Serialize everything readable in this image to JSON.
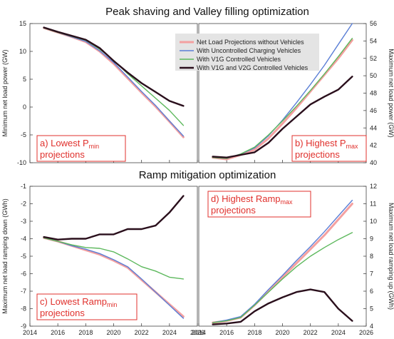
{
  "figure": {
    "title_top": "Peak shaving and Valley filling optimization",
    "title_mid": "Ramp mitigation optimization"
  },
  "legend": [
    {
      "label": "Net Load Projections without Vehicles",
      "color": "#f4a0a0"
    },
    {
      "label": "With Uncontrolled Charging Vehicles",
      "color": "#5b7fd6"
    },
    {
      "label": "With V1G Controlled Vehicles",
      "color": "#5cb85c"
    },
    {
      "label": "With V1G and V2G Controlled Vehicles",
      "color": "#2a0f1c"
    }
  ],
  "chart_data": [
    {
      "id": "a",
      "type": "line",
      "ylabel": "Minimum net load power (GW)",
      "y_side": "left",
      "xlim": [
        2014,
        2026
      ],
      "ylim": [
        -10,
        15
      ],
      "xticks": [
        2014,
        2016,
        2018,
        2020,
        2022,
        2024,
        2026
      ],
      "yticks": [
        -10,
        -5,
        0,
        5,
        10,
        15
      ],
      "show_xtick_labels": false,
      "annotation": {
        "main": "a) Lowest P",
        "sub": "min",
        "line2": "projections"
      },
      "x": [
        2015,
        2016,
        2017,
        2018,
        2019,
        2020,
        2021,
        2022,
        2023,
        2024,
        2025
      ],
      "series": [
        {
          "name": "Net Load Projections without Vehicles",
          "values": [
            14.2,
            13.4,
            12.6,
            11.7,
            10.0,
            7.8,
            5.2,
            2.6,
            0.1,
            -2.6,
            -5.4
          ]
        },
        {
          "name": "With Uncontrolled Charging Vehicles",
          "values": [
            14.2,
            13.4,
            12.6,
            11.8,
            10.1,
            8.0,
            5.4,
            2.8,
            0.3,
            -2.5,
            -5.2
          ]
        },
        {
          "name": "With V1G Controlled Vehicles",
          "values": [
            14.2,
            13.4,
            12.7,
            12.0,
            10.4,
            8.4,
            6.0,
            3.8,
            1.6,
            -0.6,
            -3.3
          ]
        },
        {
          "name": "With V1G and V2G Controlled Vehicles",
          "values": [
            14.3,
            13.5,
            12.8,
            12.1,
            10.6,
            8.3,
            6.2,
            4.3,
            2.7,
            1.1,
            0.2
          ]
        }
      ]
    },
    {
      "id": "b",
      "type": "line",
      "ylabel": "Maximum net load power (GW)",
      "y_side": "right",
      "xlim": [
        2014,
        2026
      ],
      "ylim": [
        40,
        56
      ],
      "xticks": [
        2014,
        2016,
        2018,
        2020,
        2022,
        2024,
        2026
      ],
      "yticks": [
        40,
        42,
        44,
        46,
        48,
        50,
        52,
        54,
        56
      ],
      "show_xtick_labels": false,
      "annotation": {
        "main": "b) Highest P",
        "sub": "max",
        "line2": "projections"
      },
      "x": [
        2015,
        2016,
        2017,
        2018,
        2019,
        2020,
        2021,
        2022,
        2023,
        2024,
        2025
      ],
      "series": [
        {
          "name": "Net Load Projections without Vehicles",
          "values": [
            40.6,
            40.4,
            40.9,
            41.5,
            42.8,
            44.5,
            46.3,
            48.2,
            50.1,
            52.0,
            54.1
          ]
        },
        {
          "name": "With Uncontrolled Charging Vehicles",
          "values": [
            40.6,
            40.5,
            41.0,
            41.7,
            43.1,
            44.9,
            46.9,
            49.0,
            51.2,
            53.6,
            56.0
          ]
        },
        {
          "name": "With V1G Controlled Vehicles",
          "values": [
            40.6,
            40.5,
            41.0,
            41.8,
            43.2,
            44.8,
            46.5,
            48.3,
            50.2,
            52.2,
            54.3
          ]
        },
        {
          "name": "With V1G and V2G Controlled Vehicles",
          "values": [
            40.7,
            40.6,
            40.9,
            41.2,
            42.3,
            43.9,
            45.3,
            46.7,
            47.6,
            48.4,
            49.9
          ]
        }
      ]
    },
    {
      "id": "c",
      "type": "line",
      "ylabel": "Maximum net load ramping down (GWh)",
      "y_side": "left",
      "xlim": [
        2014,
        2026
      ],
      "ylim": [
        -9,
        -1
      ],
      "xticks": [
        2014,
        2016,
        2018,
        2020,
        2022,
        2024,
        2026
      ],
      "yticks": [
        -9,
        -8,
        -7,
        -6,
        -5,
        -4,
        -3,
        -2,
        -1
      ],
      "show_xtick_labels": true,
      "annotation": {
        "main": "c) Lowest Ramp",
        "sub": "min",
        "line2": "projections"
      },
      "x": [
        2015,
        2016,
        2017,
        2018,
        2019,
        2020,
        2021,
        2022,
        2023,
        2024,
        2025
      ],
      "series": [
        {
          "name": "Net Load Projections without Vehicles",
          "values": [
            -3.95,
            -4.15,
            -4.4,
            -4.65,
            -4.9,
            -5.25,
            -5.65,
            -6.35,
            -7.05,
            -7.75,
            -8.45
          ]
        },
        {
          "name": "With Uncontrolled Charging Vehicles",
          "values": [
            -3.95,
            -4.15,
            -4.4,
            -4.6,
            -4.85,
            -5.2,
            -5.6,
            -6.3,
            -7.05,
            -7.8,
            -8.55
          ]
        },
        {
          "name": "With V1G Controlled Vehicles",
          "values": [
            -3.95,
            -4.15,
            -4.35,
            -4.5,
            -4.55,
            -4.75,
            -5.15,
            -5.6,
            -5.85,
            -6.2,
            -6.3
          ]
        },
        {
          "name": "With V1G and V2G Controlled Vehicles",
          "values": [
            -3.9,
            -4.05,
            -4.0,
            -4.0,
            -3.75,
            -3.75,
            -3.45,
            -3.45,
            -3.25,
            -2.5,
            -1.55
          ]
        }
      ]
    },
    {
      "id": "d",
      "type": "line",
      "ylabel": "Maximum net load ramping up (GWh)",
      "y_side": "right",
      "xlim": [
        2014,
        2026
      ],
      "ylim": [
        4,
        12
      ],
      "xticks": [
        2014,
        2016,
        2018,
        2020,
        2022,
        2024,
        2026
      ],
      "yticks": [
        4,
        5,
        6,
        7,
        8,
        9,
        10,
        11,
        12
      ],
      "show_xtick_labels": true,
      "annotation": {
        "main": "d) Highest Ramp",
        "sub": "max",
        "line2": "projections"
      },
      "x": [
        2015,
        2016,
        2017,
        2018,
        2019,
        2020,
        2021,
        2022,
        2023,
        2024,
        2025
      ],
      "series": [
        {
          "name": "Net Load Projections without Vehicles",
          "values": [
            4.2,
            4.3,
            4.5,
            5.2,
            6.0,
            6.8,
            7.6,
            8.4,
            9.2,
            10.1,
            11.0
          ]
        },
        {
          "name": "With Uncontrolled Charging Vehicles",
          "values": [
            4.2,
            4.35,
            4.55,
            5.25,
            6.1,
            6.9,
            7.75,
            8.55,
            9.4,
            10.3,
            11.2
          ]
        },
        {
          "name": "With V1G Controlled Vehicles",
          "values": [
            4.2,
            4.3,
            4.5,
            5.2,
            5.95,
            6.7,
            7.4,
            8.0,
            8.5,
            8.95,
            9.35
          ]
        },
        {
          "name": "With V1G and V2G Controlled Vehicles",
          "values": [
            4.1,
            4.15,
            4.25,
            4.85,
            5.3,
            5.65,
            5.95,
            6.1,
            5.95,
            5.0,
            4.3
          ]
        }
      ]
    }
  ]
}
